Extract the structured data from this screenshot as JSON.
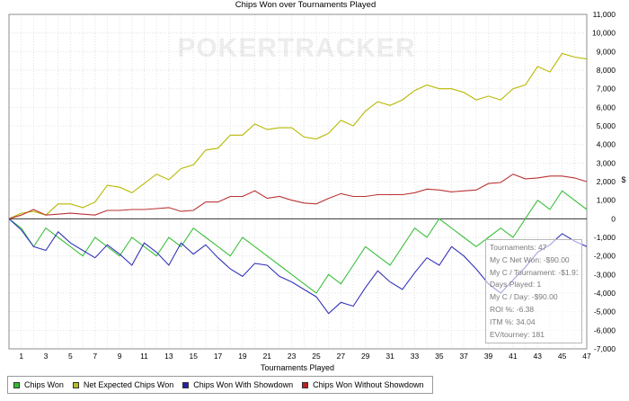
{
  "chart_data": {
    "type": "line",
    "title": "Chips Won over Tournaments Played",
    "xlabel": "Tournaments Played",
    "ylabel": "$",
    "watermark": "POKERTRACKER",
    "x": [
      0,
      1,
      2,
      3,
      4,
      5,
      6,
      7,
      8,
      9,
      10,
      11,
      12,
      13,
      14,
      15,
      16,
      17,
      18,
      19,
      20,
      21,
      22,
      23,
      24,
      25,
      26,
      27,
      28,
      29,
      30,
      31,
      32,
      33,
      34,
      35,
      36,
      37,
      38,
      39,
      40,
      41,
      42,
      43,
      44,
      45,
      46,
      47
    ],
    "xlim": [
      0,
      47
    ],
    "ylim": [
      -7000,
      11000
    ],
    "x_ticks": [
      1,
      3,
      5,
      7,
      9,
      11,
      13,
      15,
      17,
      19,
      21,
      23,
      25,
      27,
      29,
      31,
      33,
      35,
      37,
      39,
      41,
      43,
      45,
      47
    ],
    "y_ticks": [
      -7000,
      -6000,
      -5000,
      -4000,
      -3000,
      -2000,
      -1000,
      0,
      1000,
      2000,
      3000,
      4000,
      5000,
      6000,
      7000,
      8000,
      9000,
      10000,
      11000
    ],
    "y_tick_labels": [
      "-7,000",
      "-6,000",
      "-5,000",
      "-4,000",
      "-3,000",
      "-2,000",
      "-1,000",
      "0",
      "1,000",
      "2,000",
      "3,000",
      "4,000",
      "5,000",
      "6,000",
      "7,000",
      "8,000",
      "9,000",
      "10,000",
      "11,000"
    ],
    "grid": true,
    "series": [
      {
        "name": "Chips Won",
        "color": "#3cc03c",
        "values": [
          0,
          -500,
          -1500,
          -500,
          -1000,
          -1500,
          -2000,
          -1000,
          -1500,
          -2000,
          -1000,
          -1500,
          -2000,
          -1000,
          -1500,
          -500,
          -1000,
          -1500,
          -2000,
          -1000,
          -1500,
          -2000,
          -2500,
          -3000,
          -3500,
          -4000,
          -3000,
          -3500,
          -2500,
          -1500,
          -2000,
          -2500,
          -1500,
          -500,
          -1000,
          0,
          -500,
          -1000,
          -1500,
          -1000,
          -500,
          -1000,
          0,
          1000,
          500,
          1500,
          1000,
          500
        ]
      },
      {
        "name": "Net Expected Chips Won",
        "color": "#b8b800",
        "values": [
          0,
          300,
          400,
          200,
          800,
          800,
          600,
          900,
          1800,
          1700,
          1400,
          1900,
          2400,
          2100,
          2700,
          2900,
          3700,
          3800,
          4500,
          4500,
          5100,
          4800,
          4900,
          4900,
          4400,
          4300,
          4600,
          5300,
          5000,
          5800,
          6300,
          6100,
          6400,
          6900,
          7200,
          7000,
          7000,
          6800,
          6400,
          6600,
          6400,
          7000,
          7200,
          8200,
          7900,
          8900,
          8700,
          8600
        ]
      },
      {
        "name": "Chips Won With Showdown",
        "color": "#3333bb",
        "values": [
          0,
          -600,
          -1500,
          -1700,
          -700,
          -1300,
          -1700,
          -2100,
          -1400,
          -1900,
          -2500,
          -1300,
          -1800,
          -2500,
          -1300,
          -1900,
          -1400,
          -2100,
          -2700,
          -3100,
          -2400,
          -2500,
          -3100,
          -3400,
          -3800,
          -4200,
          -5100,
          -4500,
          -4700,
          -3700,
          -2800,
          -3400,
          -3800,
          -2900,
          -2100,
          -2500,
          -1500,
          -2000,
          -2700,
          -3500,
          -4000,
          -3300,
          -2600,
          -1800,
          -1400,
          -800,
          -1200,
          -1500
        ]
      },
      {
        "name": "Chips Won Without Showdown",
        "color": "#bb3333",
        "values": [
          0,
          200,
          500,
          200,
          250,
          300,
          250,
          200,
          450,
          450,
          500,
          500,
          550,
          600,
          400,
          450,
          900,
          900,
          1200,
          1200,
          1500,
          1100,
          1200,
          1000,
          850,
          800,
          1100,
          1350,
          1200,
          1200,
          1300,
          1300,
          1300,
          1400,
          1600,
          1550,
          1450,
          1500,
          1550,
          1900,
          1950,
          2400,
          2150,
          2200,
          2300,
          2300,
          2200,
          2000
        ]
      }
    ]
  },
  "info_box": {
    "lines": [
      "Tournaments: 47",
      "My C Net Won: -$90.00",
      "My C / Tournament: -$1.91",
      "Days Played: 1",
      "My C / Day: -$90.00",
      "ROI %: -6.38",
      "ITM %: 34.04",
      "EV/tourney: 181"
    ]
  },
  "legend": {
    "items": [
      {
        "label": "Chips Won",
        "color": "#33bb33"
      },
      {
        "label": "Net Expected Chips Won",
        "color": "#bbbb22"
      },
      {
        "label": "Chips Won With Showdown",
        "color": "#2222aa"
      },
      {
        "label": "Chips Won Without Showdown",
        "color": "#bb2222"
      }
    ]
  }
}
